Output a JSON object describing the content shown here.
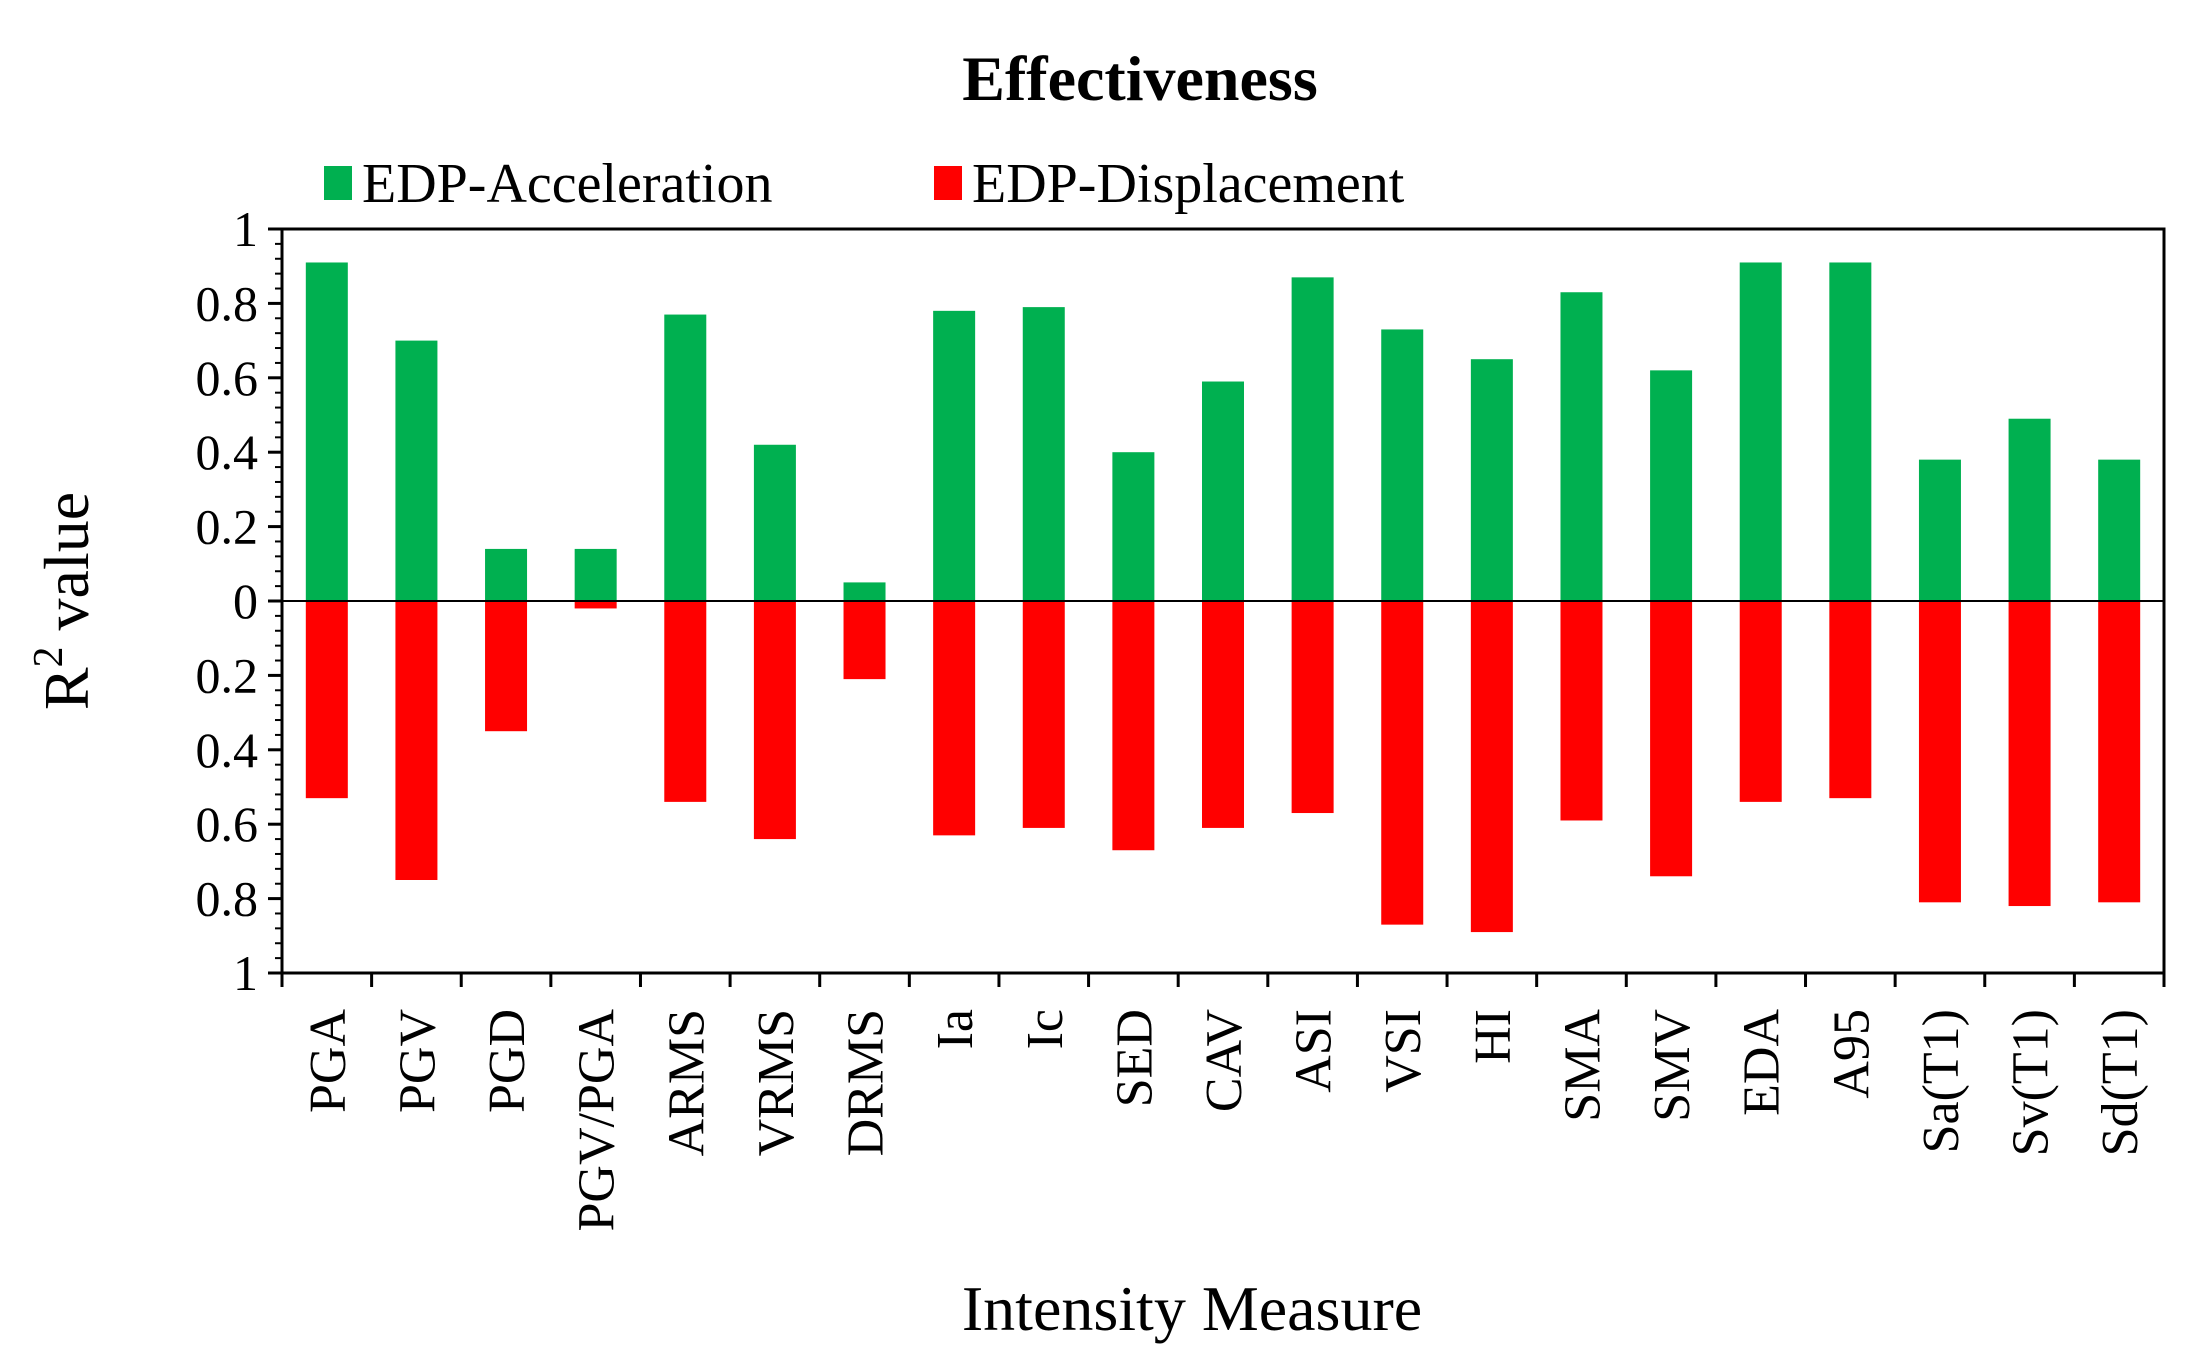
{
  "chart_data": {
    "type": "bar",
    "title": "Effectiveness",
    "xlabel": "Intensity Measure",
    "ylabel": {
      "prefix": "R",
      "sup": "2",
      "suffix": " value"
    },
    "ylim": [
      -1,
      1
    ],
    "yticks": [
      1,
      0.8,
      0.6,
      0.4,
      0.2,
      0,
      -0.2,
      -0.4,
      -0.6,
      -0.8,
      -1
    ],
    "ytick_labels": [
      "1",
      "0.8",
      "0.6",
      "0.4",
      "0.2",
      "0",
      "0.2",
      "0.4",
      "0.6",
      "0.8",
      "1"
    ],
    "grid": false,
    "legend": "top-left",
    "categories": [
      "PGA",
      "PGV",
      "PGD",
      "PGV/PGA",
      "ARMS",
      "VRMS",
      "DRMS",
      "Ia",
      "Ic",
      "SED",
      "CAV",
      "ASI",
      "VSI",
      "HI",
      "SMA",
      "SMV",
      "EDA",
      "A95",
      "Sa(T1)",
      "Sv(T1)",
      "Sd(T1)"
    ],
    "series": [
      {
        "name": "EDP-Acceleration",
        "color": "#00b050",
        "values": [
          0.91,
          0.7,
          0.14,
          0.14,
          0.77,
          0.42,
          0.05,
          0.78,
          0.79,
          0.4,
          0.59,
          0.87,
          0.73,
          0.65,
          0.83,
          0.62,
          0.91,
          0.91,
          0.38,
          0.49,
          0.38
        ]
      },
      {
        "name": "EDP-Displacement",
        "color": "#ff0000",
        "values": [
          -0.53,
          -0.75,
          -0.35,
          -0.02,
          -0.54,
          -0.64,
          -0.21,
          -0.63,
          -0.61,
          -0.67,
          -0.61,
          -0.57,
          -0.87,
          -0.89,
          -0.59,
          -0.74,
          -0.54,
          -0.53,
          -0.81,
          -0.82,
          -0.81
        ]
      }
    ]
  }
}
